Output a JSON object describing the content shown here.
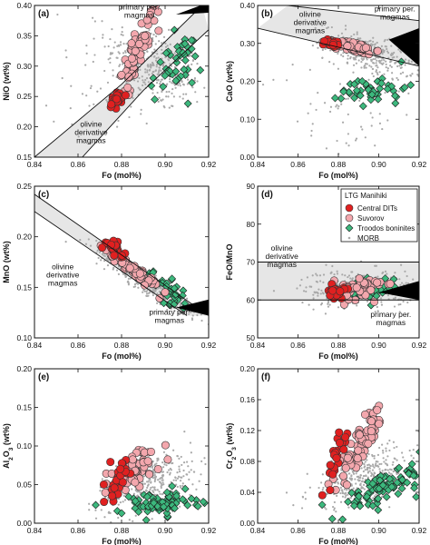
{
  "legend": {
    "title": "LTG Manihiki",
    "items": [
      {
        "label": "Central DITs",
        "series": "central"
      },
      {
        "label": "Suvorov",
        "series": "suvorov"
      },
      {
        "label": "Troodos boninites",
        "series": "troodos"
      },
      {
        "label": "MORB",
        "series": "morb"
      }
    ]
  },
  "colors": {
    "central": "#e02020",
    "suvorov": "#f3a7ad",
    "troodos": "#3cb87d",
    "morb": "#a9a9a9",
    "field": "#e6e6e6"
  },
  "chart_data": [
    {
      "type": "scatter",
      "panel": "(a)",
      "xlabel": "Fo (mol%)",
      "ylabel": "NiO",
      "xlim": [
        0.84,
        0.92
      ],
      "ylim": [
        0.15,
        0.4
      ],
      "xticks": [
        "0.84",
        "0.86",
        "0.88",
        "0.90",
        "0.92"
      ],
      "yticks": [
        "0.15",
        "0.20",
        "0.25",
        "0.30",
        "0.35",
        "0.40"
      ],
      "annotations": [
        {
          "text": [
            "primary per.",
            "magmas"
          ],
          "x": 0.888,
          "y": 0.393,
          "anchor": "middle"
        },
        {
          "text": [
            "olivine",
            "derivative",
            "magmas"
          ],
          "x": 0.866,
          "y": 0.2,
          "anchor": "middle"
        }
      ],
      "curves": [
        [
          [
            0.84,
            0.15
          ],
          [
            0.88,
            0.27
          ],
          [
            0.917,
            0.4
          ]
        ],
        [
          [
            0.862,
            0.15
          ],
          [
            0.89,
            0.26
          ],
          [
            0.92,
            0.36
          ]
        ]
      ],
      "wedge": [
        [
          0.905,
          0.385
        ],
        [
          0.92,
          0.405
        ],
        [
          0.92,
          0.388
        ]
      ],
      "clusters": {
        "morb": [
          {
            "cx": 0.895,
            "cy": 0.3,
            "sx": 0.011,
            "sy": 0.035,
            "r": -0.5,
            "n": 300
          },
          {
            "cx": 0.877,
            "cy": 0.27,
            "sx": 0.015,
            "sy": 0.04,
            "r": 0.2,
            "n": 60
          }
        ],
        "troodos": [
          {
            "cx": 0.905,
            "cy": 0.3,
            "sx": 0.006,
            "sy": 0.025,
            "r": 0.3,
            "n": 45
          }
        ],
        "suvorov": [
          {
            "cx": 0.888,
            "cy": 0.33,
            "sx": 0.005,
            "sy": 0.04,
            "r": 0.9,
            "n": 80
          }
        ],
        "central": [
          {
            "cx": 0.878,
            "cy": 0.243,
            "sx": 0.002,
            "sy": 0.008,
            "r": 0.5,
            "n": 25
          }
        ]
      }
    },
    {
      "type": "scatter",
      "panel": "(b)",
      "xlabel": "Fo (mol%)",
      "ylabel": "CaO",
      "xlim": [
        0.84,
        0.92
      ],
      "ylim": [
        0.0,
        0.4
      ],
      "xticks": [
        "0.84",
        "0.86",
        "0.88",
        "0.90",
        "0.92"
      ],
      "yticks": [
        "0.00",
        "0.10",
        "0.20",
        "0.30",
        "0.40"
      ],
      "annotations": [
        {
          "text": [
            "olivine",
            "derivative",
            "magmas"
          ],
          "x": 0.866,
          "y": 0.37,
          "anchor": "middle"
        },
        {
          "text": [
            "primary per.",
            "magmas"
          ],
          "x": 0.908,
          "y": 0.385,
          "anchor": "middle"
        }
      ],
      "curves": [
        [
          [
            0.84,
            0.34
          ],
          [
            0.92,
            0.24
          ]
        ],
        [
          [
            0.855,
            0.4
          ],
          [
            0.92,
            0.36
          ]
        ]
      ],
      "wedge": [
        [
          0.905,
          0.31
        ],
        [
          0.92,
          0.34
        ],
        [
          0.92,
          0.24
        ]
      ],
      "clusters": {
        "morb": [
          {
            "cx": 0.895,
            "cy": 0.27,
            "sx": 0.011,
            "sy": 0.03,
            "r": -0.6,
            "n": 300
          },
          {
            "cx": 0.88,
            "cy": 0.12,
            "sx": 0.02,
            "sy": 0.07,
            "r": 0,
            "n": 60
          }
        ],
        "troodos": [
          {
            "cx": 0.898,
            "cy": 0.18,
            "sx": 0.008,
            "sy": 0.02,
            "r": 0.1,
            "n": 45
          }
        ],
        "suvorov": [
          {
            "cx": 0.888,
            "cy": 0.29,
            "sx": 0.005,
            "sy": 0.008,
            "r": -0.5,
            "n": 80
          }
        ],
        "central": [
          {
            "cx": 0.877,
            "cy": 0.3,
            "sx": 0.002,
            "sy": 0.005,
            "r": 0,
            "n": 25
          }
        ]
      }
    },
    {
      "type": "scatter",
      "panel": "(c)",
      "xlabel": "Fo (mol%)",
      "ylabel": "MnO",
      "xlim": [
        0.84,
        0.92
      ],
      "ylim": [
        0.1,
        0.25
      ],
      "xticks": [
        "0.84",
        "0.86",
        "0.88",
        "0.90",
        "0.92"
      ],
      "yticks": [
        "0.10",
        "0.15",
        "0.20",
        "0.25"
      ],
      "annotations": [
        {
          "text": [
            "olivine",
            "derivative",
            "magmas"
          ],
          "x": 0.853,
          "y": 0.168,
          "anchor": "middle"
        },
        {
          "text": [
            "primary per.",
            "magmas"
          ],
          "x": 0.902,
          "y": 0.123,
          "anchor": "middle"
        }
      ],
      "curves": [
        [
          [
            0.84,
            0.242
          ],
          [
            0.92,
            0.122
          ]
        ],
        [
          [
            0.84,
            0.225
          ],
          [
            0.91,
            0.122
          ]
        ]
      ],
      "wedge": [
        [
          0.905,
          0.13
        ],
        [
          0.92,
          0.122
        ],
        [
          0.92,
          0.138
        ]
      ],
      "clusters": {
        "morb": [
          {
            "cx": 0.893,
            "cy": 0.152,
            "sx": 0.012,
            "sy": 0.018,
            "r": -0.95,
            "n": 350
          }
        ],
        "troodos": [
          {
            "cx": 0.902,
            "cy": 0.145,
            "sx": 0.006,
            "sy": 0.01,
            "r": -0.8,
            "n": 40
          }
        ],
        "suvorov": [
          {
            "cx": 0.885,
            "cy": 0.168,
            "sx": 0.006,
            "sy": 0.01,
            "r": -0.95,
            "n": 80
          }
        ],
        "central": [
          {
            "cx": 0.877,
            "cy": 0.188,
            "sx": 0.002,
            "sy": 0.004,
            "r": -0.6,
            "n": 25
          }
        ]
      }
    },
    {
      "type": "scatter",
      "panel": "(d)",
      "xlabel": "Fo (mol%)",
      "ylabel": "FeO/MnO",
      "xlim": [
        0.84,
        0.92
      ],
      "ylim": [
        50,
        90
      ],
      "xticks": [
        "0.84",
        "0.86",
        "0.88",
        "0.90",
        "0.92"
      ],
      "yticks": [
        "50",
        "60",
        "70",
        "80",
        "90"
      ],
      "annotations": [
        {
          "text": [
            "olivine",
            "derivative",
            "magmas"
          ],
          "x": 0.852,
          "y": 73,
          "anchor": "middle"
        },
        {
          "text": [
            "primary per.",
            "magmas"
          ],
          "x": 0.906,
          "y": 55.5,
          "anchor": "middle"
        }
      ],
      "band": [
        60,
        70
      ],
      "wedge": [
        [
          0.9,
          62
        ],
        [
          0.92,
          60
        ],
        [
          0.92,
          65
        ]
      ],
      "clusters": {
        "morb": [
          {
            "cx": 0.89,
            "cy": 63,
            "sx": 0.014,
            "sy": 2.5,
            "r": 0,
            "n": 300
          }
        ],
        "troodos": [
          {
            "cx": 0.895,
            "cy": 63,
            "sx": 0.008,
            "sy": 2,
            "r": 0.3,
            "n": 40
          }
        ],
        "suvorov": [
          {
            "cx": 0.89,
            "cy": 63,
            "sx": 0.006,
            "sy": 1.5,
            "r": 0.2,
            "n": 70
          }
        ],
        "central": [
          {
            "cx": 0.879,
            "cy": 62,
            "sx": 0.002,
            "sy": 0.8,
            "r": 0,
            "n": 25
          }
        ]
      }
    },
    {
      "type": "scatter",
      "panel": "(e)",
      "xlabel": "Fo (mol%)",
      "ylabel": "Al2O3",
      "xlim": [
        0.84,
        0.92
      ],
      "ylim": [
        0.0,
        0.2
      ],
      "xticks": [
        "0.84",
        "0.86",
        "0.88",
        "0.90",
        "0.92"
      ],
      "yticks": [
        "0.00",
        "0.05",
        "0.10",
        "0.15",
        "0.20"
      ],
      "clusters": {
        "morb": [
          {
            "cx": 0.893,
            "cy": 0.055,
            "sx": 0.012,
            "sy": 0.02,
            "r": 0.5,
            "n": 350
          }
        ],
        "troodos": [
          {
            "cx": 0.897,
            "cy": 0.025,
            "sx": 0.009,
            "sy": 0.008,
            "r": 0.2,
            "n": 80
          }
        ],
        "suvorov": [
          {
            "cx": 0.886,
            "cy": 0.07,
            "sx": 0.006,
            "sy": 0.015,
            "r": 0.7,
            "n": 80
          }
        ],
        "central": [
          {
            "cx": 0.878,
            "cy": 0.055,
            "sx": 0.002,
            "sy": 0.012,
            "r": 0.2,
            "n": 30
          }
        ]
      }
    },
    {
      "type": "scatter",
      "panel": "(f)",
      "xlabel": "Fo (mol%)",
      "ylabel": "Cr2O3",
      "xlim": [
        0.84,
        0.92
      ],
      "ylim": [
        0.0,
        0.2
      ],
      "xticks": [
        "0.84",
        "0.86",
        "0.88",
        "0.90",
        "0.92"
      ],
      "yticks": [
        "0.00",
        "0.04",
        "0.08",
        "0.12",
        "0.16",
        "0.20"
      ],
      "clusters": {
        "morb": [
          {
            "cx": 0.893,
            "cy": 0.06,
            "sx": 0.014,
            "sy": 0.02,
            "r": 0.6,
            "n": 350
          }
        ],
        "troodos": [
          {
            "cx": 0.902,
            "cy": 0.045,
            "sx": 0.01,
            "sy": 0.015,
            "r": 0.8,
            "n": 90
          }
        ],
        "suvorov": [
          {
            "cx": 0.891,
            "cy": 0.1,
            "sx": 0.006,
            "sy": 0.025,
            "r": 0.9,
            "n": 80
          }
        ],
        "central": [
          {
            "cx": 0.879,
            "cy": 0.085,
            "sx": 0.003,
            "sy": 0.02,
            "r": 0.8,
            "n": 30
          }
        ]
      }
    }
  ]
}
